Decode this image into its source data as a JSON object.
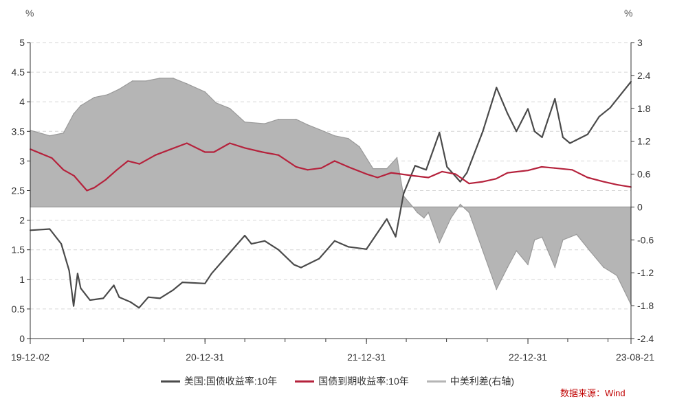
{
  "chart_data": {
    "type": "line",
    "left_unit": "%",
    "right_unit": "%",
    "x_tick_labels": [
      "19-12-02",
      "20-12-31",
      "21-12-31",
      "22-12-31",
      "23-08-21"
    ],
    "x_range": [
      "2019-12-02",
      "2023-08-21"
    ],
    "y_left_ticks": [
      "0",
      "0.5",
      "1",
      "1.5",
      "2",
      "2.5",
      "3",
      "3.5",
      "4",
      "4.5",
      "5"
    ],
    "y_left_range": [
      0,
      5
    ],
    "y_right_ticks": [
      "-2.4",
      "-1.8",
      "-1.2",
      "-0.6",
      "0",
      "0.6",
      "1.2",
      "1.8",
      "2.4",
      "3"
    ],
    "y_right_range": [
      -2.4,
      3
    ],
    "grid": true,
    "legend_position": "bottom",
    "series": [
      {
        "name": "美国:国债收益率:10年",
        "axis": "left",
        "style": "line",
        "color": "#4a4a4a",
        "points": [
          [
            "2019-12-02",
            1.83
          ],
          [
            "2020-01-15",
            1.85
          ],
          [
            "2020-02-10",
            1.6
          ],
          [
            "2020-02-28",
            1.15
          ],
          [
            "2020-03-09",
            0.55
          ],
          [
            "2020-03-18",
            1.1
          ],
          [
            "2020-03-25",
            0.85
          ],
          [
            "2020-04-15",
            0.65
          ],
          [
            "2020-05-15",
            0.68
          ],
          [
            "2020-06-08",
            0.9
          ],
          [
            "2020-06-20",
            0.7
          ],
          [
            "2020-07-15",
            0.62
          ],
          [
            "2020-08-04",
            0.52
          ],
          [
            "2020-08-25",
            0.7
          ],
          [
            "2020-09-20",
            0.68
          ],
          [
            "2020-10-20",
            0.82
          ],
          [
            "2020-11-10",
            0.95
          ],
          [
            "2020-12-31",
            0.93
          ],
          [
            "2021-01-15",
            1.1
          ],
          [
            "2021-02-25",
            1.45
          ],
          [
            "2021-03-31",
            1.74
          ],
          [
            "2021-04-15",
            1.6
          ],
          [
            "2021-05-15",
            1.65
          ],
          [
            "2021-06-15",
            1.5
          ],
          [
            "2021-07-20",
            1.25
          ],
          [
            "2021-08-05",
            1.2
          ],
          [
            "2021-09-15",
            1.35
          ],
          [
            "2021-10-20",
            1.65
          ],
          [
            "2021-11-20",
            1.55
          ],
          [
            "2021-12-31",
            1.51
          ],
          [
            "2022-02-15",
            2.02
          ],
          [
            "2022-03-07",
            1.72
          ],
          [
            "2022-03-25",
            2.45
          ],
          [
            "2022-04-20",
            2.92
          ],
          [
            "2022-05-15",
            2.85
          ],
          [
            "2022-06-14",
            3.48
          ],
          [
            "2022-07-01",
            2.9
          ],
          [
            "2022-07-31",
            2.65
          ],
          [
            "2022-08-15",
            2.8
          ],
          [
            "2022-09-20",
            3.5
          ],
          [
            "2022-10-21",
            4.24
          ],
          [
            "2022-11-15",
            3.8
          ],
          [
            "2022-12-05",
            3.5
          ],
          [
            "2022-12-31",
            3.88
          ],
          [
            "2023-01-15",
            3.5
          ],
          [
            "2023-02-01",
            3.4
          ],
          [
            "2023-03-02",
            4.05
          ],
          [
            "2023-03-20",
            3.4
          ],
          [
            "2023-04-05",
            3.3
          ],
          [
            "2023-05-15",
            3.45
          ],
          [
            "2023-06-10",
            3.75
          ],
          [
            "2023-07-05",
            3.9
          ],
          [
            "2023-08-21",
            4.34
          ]
        ]
      },
      {
        "name": "国债到期收益率:10年",
        "axis": "left",
        "style": "line",
        "color": "#b5223c",
        "points": [
          [
            "2019-12-02",
            3.2
          ],
          [
            "2020-01-20",
            3.05
          ],
          [
            "2020-02-15",
            2.85
          ],
          [
            "2020-03-10",
            2.75
          ],
          [
            "2020-04-08",
            2.5
          ],
          [
            "2020-04-25",
            2.55
          ],
          [
            "2020-05-20",
            2.68
          ],
          [
            "2020-06-15",
            2.85
          ],
          [
            "2020-07-10",
            3.0
          ],
          [
            "2020-08-05",
            2.95
          ],
          [
            "2020-09-10",
            3.1
          ],
          [
            "2020-10-15",
            3.2
          ],
          [
            "2020-11-20",
            3.3
          ],
          [
            "2020-12-31",
            3.15
          ],
          [
            "2021-01-20",
            3.15
          ],
          [
            "2021-02-25",
            3.3
          ],
          [
            "2021-03-31",
            3.22
          ],
          [
            "2021-05-10",
            3.15
          ],
          [
            "2021-06-15",
            3.1
          ],
          [
            "2021-07-25",
            2.9
          ],
          [
            "2021-08-20",
            2.85
          ],
          [
            "2021-09-20",
            2.88
          ],
          [
            "2021-10-20",
            3.0
          ],
          [
            "2021-11-20",
            2.9
          ],
          [
            "2021-12-31",
            2.78
          ],
          [
            "2022-01-25",
            2.72
          ],
          [
            "2022-02-25",
            2.8
          ],
          [
            "2022-04-15",
            2.75
          ],
          [
            "2022-05-20",
            2.72
          ],
          [
            "2022-06-20",
            2.82
          ],
          [
            "2022-07-20",
            2.78
          ],
          [
            "2022-08-20",
            2.62
          ],
          [
            "2022-09-20",
            2.65
          ],
          [
            "2022-10-20",
            2.7
          ],
          [
            "2022-11-15",
            2.8
          ],
          [
            "2022-12-31",
            2.84
          ],
          [
            "2023-01-31",
            2.9
          ],
          [
            "2023-03-01",
            2.88
          ],
          [
            "2023-04-10",
            2.85
          ],
          [
            "2023-05-15",
            2.72
          ],
          [
            "2023-06-20",
            2.65
          ],
          [
            "2023-07-20",
            2.6
          ],
          [
            "2023-08-21",
            2.56
          ]
        ]
      },
      {
        "name": "中美利差(右轴)",
        "axis": "right",
        "style": "area",
        "color": "#b5b5b5",
        "line_color": "#9a9a9a",
        "points": [
          [
            "2019-12-02",
            1.4
          ],
          [
            "2020-01-15",
            1.3
          ],
          [
            "2020-02-15",
            1.35
          ],
          [
            "2020-03-09",
            1.7
          ],
          [
            "2020-03-25",
            1.85
          ],
          [
            "2020-04-25",
            2.0
          ],
          [
            "2020-05-25",
            2.05
          ],
          [
            "2020-06-20",
            2.15
          ],
          [
            "2020-07-20",
            2.3
          ],
          [
            "2020-08-20",
            2.3
          ],
          [
            "2020-09-20",
            2.35
          ],
          [
            "2020-10-20",
            2.35
          ],
          [
            "2020-11-20",
            2.25
          ],
          [
            "2020-12-31",
            2.1
          ],
          [
            "2021-01-25",
            1.9
          ],
          [
            "2021-02-25",
            1.8
          ],
          [
            "2021-03-31",
            1.55
          ],
          [
            "2021-05-15",
            1.52
          ],
          [
            "2021-06-15",
            1.6
          ],
          [
            "2021-07-25",
            1.6
          ],
          [
            "2021-08-20",
            1.5
          ],
          [
            "2021-09-20",
            1.4
          ],
          [
            "2021-10-20",
            1.3
          ],
          [
            "2021-11-20",
            1.25
          ],
          [
            "2021-12-15",
            1.1
          ],
          [
            "2022-01-15",
            0.7
          ],
          [
            "2022-02-15",
            0.7
          ],
          [
            "2022-03-10",
            0.9
          ],
          [
            "2022-03-25",
            0.2
          ],
          [
            "2022-04-15",
            0.0
          ],
          [
            "2022-04-25",
            -0.1
          ],
          [
            "2022-05-10",
            -0.2
          ],
          [
            "2022-05-20",
            -0.1
          ],
          [
            "2022-06-14",
            -0.65
          ],
          [
            "2022-07-10",
            -0.2
          ],
          [
            "2022-07-31",
            0.05
          ],
          [
            "2022-08-20",
            -0.1
          ],
          [
            "2022-09-20",
            -0.8
          ],
          [
            "2022-10-21",
            -1.5
          ],
          [
            "2022-11-15",
            -1.1
          ],
          [
            "2022-12-05",
            -0.8
          ],
          [
            "2022-12-31",
            -1.05
          ],
          [
            "2023-01-15",
            -0.6
          ],
          [
            "2023-02-01",
            -0.55
          ],
          [
            "2023-03-02",
            -1.1
          ],
          [
            "2023-03-20",
            -0.6
          ],
          [
            "2023-04-20",
            -0.5
          ],
          [
            "2023-05-20",
            -0.8
          ],
          [
            "2023-06-20",
            -1.1
          ],
          [
            "2023-07-20",
            -1.25
          ],
          [
            "2023-08-21",
            -1.78
          ]
        ]
      }
    ]
  },
  "legend": [
    {
      "label": "美国:国债收益率:10年",
      "color": "#4a4a4a"
    },
    {
      "label": "国债到期收益率:10年",
      "color": "#b5223c"
    },
    {
      "label": "中美利差(右轴)",
      "color": "#b5b5b5"
    }
  ],
  "source_note": "数据来源：Wind"
}
